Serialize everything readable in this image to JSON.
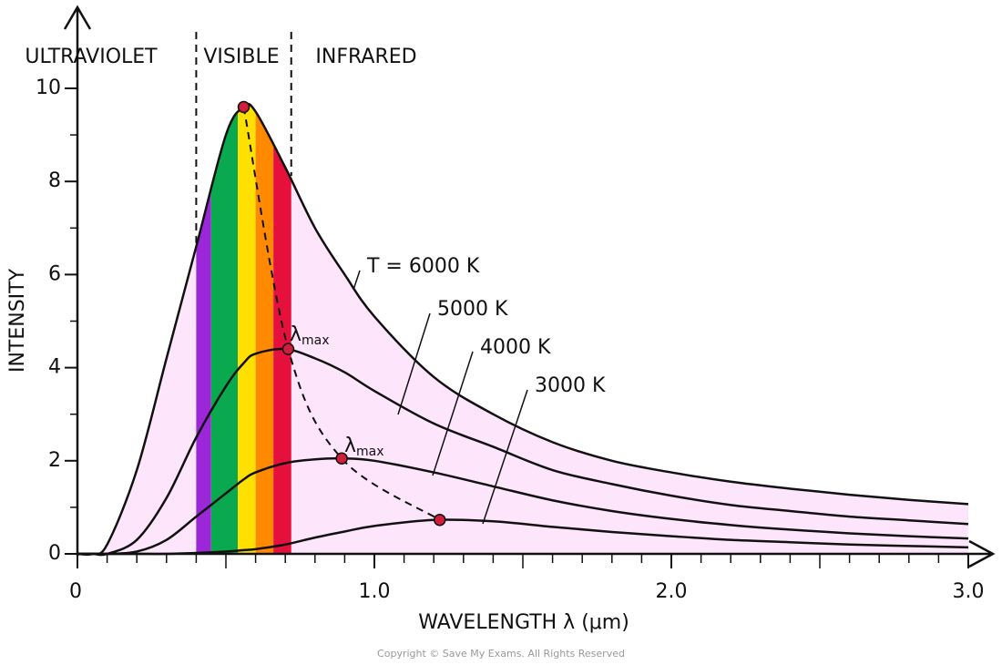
{
  "chart_data": {
    "type": "line",
    "region_labels": [
      "ULTRAVIOLET",
      "VISIBLE",
      "INFRARED"
    ],
    "visible_range": [
      0.4,
      0.72
    ],
    "bands": [
      {
        "color": "#9b27d8",
        "range": [
          0.4,
          0.45
        ]
      },
      {
        "color": "#0aa84f",
        "range": [
          0.45,
          0.54
        ]
      },
      {
        "color": "#ffe000",
        "range": [
          0.54,
          0.6
        ]
      },
      {
        "color": "#ff8a00",
        "range": [
          0.6,
          0.66
        ]
      },
      {
        "color": "#e5103c",
        "range": [
          0.66,
          0.72
        ]
      }
    ],
    "fill_color": "#fde6fb",
    "xlabel": "WAVELENGTH λ (μm)",
    "ylabel": "INTENSITY",
    "xlim": [
      0,
      3.0
    ],
    "ylim": [
      0,
      10
    ],
    "xticks": [
      0,
      {
        "value": 1,
        "label": "1.0"
      },
      {
        "value": 2,
        "label": "2.0"
      },
      {
        "value": 3,
        "label": "3.0"
      }
    ],
    "xminorticks": [
      0.1,
      0.2,
      0.3,
      0.4,
      0.5,
      0.6,
      0.7,
      0.8,
      0.9,
      1.1,
      1.2,
      1.3,
      1.4,
      1.5,
      1.6,
      1.7,
      1.8,
      1.9,
      2.1,
      2.2,
      2.3,
      2.4,
      2.5,
      2.6,
      2.7,
      2.8,
      2.9
    ],
    "yticks": [
      0,
      2,
      4,
      6,
      8,
      10
    ],
    "yminorticks": [
      1,
      3,
      5,
      7,
      9
    ],
    "x": [
      0,
      0.05,
      0.1,
      0.2,
      0.3,
      0.4,
      0.5,
      0.56,
      0.6,
      0.7,
      0.8,
      0.9,
      1.0,
      1.2,
      1.4,
      1.6,
      1.8,
      2.0,
      2.2,
      2.4,
      2.6,
      2.8,
      3.0
    ],
    "series": [
      {
        "name": "T = 6000 K",
        "color": "#111111",
        "values": [
          0,
          0,
          0.2,
          1.8,
          4.2,
          6.6,
          9.0,
          9.6,
          9.5,
          8.3,
          7.0,
          6.0,
          5.1,
          3.8,
          3.0,
          2.4,
          2.0,
          1.75,
          1.55,
          1.4,
          1.27,
          1.16,
          1.07
        ]
      },
      {
        "name": "5000 K",
        "color": "#111111",
        "values": [
          0,
          0,
          0,
          0.3,
          1.2,
          2.5,
          3.6,
          4.1,
          4.3,
          4.4,
          4.2,
          3.9,
          3.5,
          2.8,
          2.3,
          1.8,
          1.5,
          1.25,
          1.05,
          0.92,
          0.8,
          0.72,
          0.64
        ]
      },
      {
        "name": "4000 K",
        "color": "#111111",
        "values": [
          0,
          0,
          0,
          0.05,
          0.3,
          0.8,
          1.3,
          1.6,
          1.75,
          1.95,
          2.03,
          2.05,
          2.0,
          1.75,
          1.45,
          1.15,
          0.92,
          0.75,
          0.62,
          0.52,
          0.44,
          0.38,
          0.33
        ]
      },
      {
        "name": "3000 K",
        "color": "#111111",
        "values": [
          0,
          0,
          0,
          0,
          0,
          0.02,
          0.05,
          0.08,
          0.1,
          0.2,
          0.35,
          0.48,
          0.6,
          0.73,
          0.7,
          0.58,
          0.47,
          0.38,
          0.3,
          0.25,
          0.2,
          0.17,
          0.14
        ]
      }
    ],
    "peaks": {
      "color": "#d01f3c",
      "x": [
        0.56,
        0.71,
        0.89,
        1.22
      ],
      "values": [
        9.6,
        4.4,
        2.05,
        0.73
      ]
    },
    "annotations": [
      {
        "symbol": "λ",
        "sub": "max"
      },
      {
        "symbol": "λ",
        "sub": "max"
      }
    ],
    "copyright": "Copyright © Save My Exams. All Rights Reserved"
  }
}
